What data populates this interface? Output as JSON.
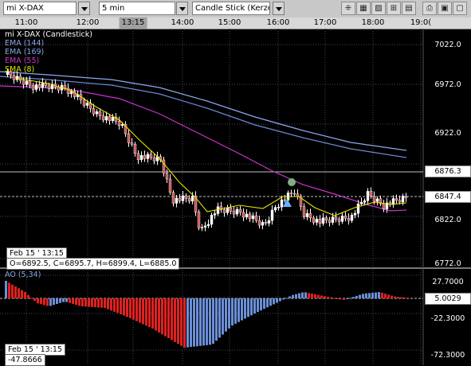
{
  "toolbar": {
    "instrument": "mi X-DAX",
    "interval": "5 min",
    "chart_style": "Candle Stick (Kerze"
  },
  "time_axis": {
    "labels": [
      "11:00",
      "12:00",
      "13:15",
      "14:00",
      "15:00",
      "16:00",
      "17:00",
      "18:00",
      "19:0("
    ],
    "highlighted": "13:15"
  },
  "legend": {
    "title": "mi X-DAX (Candlestick)",
    "ema144": "EMA (144)",
    "ema169": "EMA (169)",
    "ema55": "EMA (55)",
    "sma8": "SMA (8)"
  },
  "price_axis": {
    "labels": [
      "7022.0",
      "6972.0",
      "6922.0",
      "6822.0",
      "6772.0"
    ],
    "box_upper": "6876.3",
    "box_current": "6847.4"
  },
  "info_box": {
    "date": "Feb 15 ' 13:15",
    "ohlc": "O=6892.5, C=6895.7, H=6899.4, L=6885.0"
  },
  "oscillator": {
    "title": "AO (5,34)",
    "axis_labels": [
      "27.7000",
      "-22.3000",
      "-72.3000"
    ],
    "current_box": "5.0029",
    "info_date": "Feb 15 ' 13:15",
    "info_value": "-47.8666"
  },
  "colors": {
    "ema144": "#6a8ad6",
    "ema169": "#8aaaf0",
    "ema55": "#cc33cc",
    "sma8": "#e6e600",
    "ao_up": "#6b8fd8",
    "ao_down": "#e02020"
  }
}
